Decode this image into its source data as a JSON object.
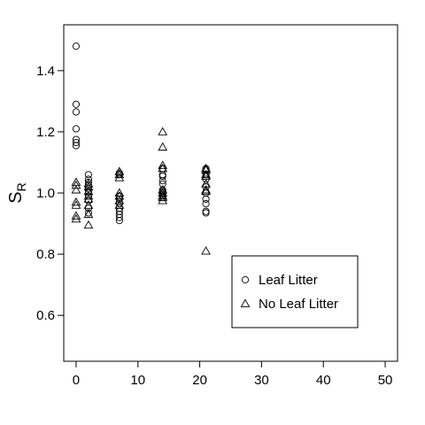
{
  "chart_data": {
    "type": "scatter",
    "title": "",
    "xlabel": "",
    "ylabel": "S",
    "ylabel_subscript": "R",
    "xlim": [
      -2,
      52
    ],
    "ylim": [
      0.45,
      1.55
    ],
    "xticks": [
      0,
      10,
      20,
      30,
      40,
      50
    ],
    "yticks": [
      0.6,
      0.8,
      1.0,
      1.2,
      1.4
    ],
    "xtick_labels": [
      "0",
      "10",
      "20",
      "30",
      "40",
      "50"
    ],
    "ytick_labels": [
      "0.6",
      "0.8",
      "1.0",
      "1.2",
      "1.4"
    ],
    "grid": false,
    "legend_position": "bottom-right",
    "series": [
      {
        "name": "Leaf Litter",
        "marker": "circle",
        "points": [
          [
            0,
            1.48
          ],
          [
            0,
            1.29
          ],
          [
            0,
            1.265
          ],
          [
            0,
            1.21
          ],
          [
            0,
            1.175
          ],
          [
            0,
            1.165
          ],
          [
            0,
            1.155
          ],
          [
            2,
            1.06
          ],
          [
            2,
            1.045
          ],
          [
            2,
            1.035
          ],
          [
            2,
            1.025
          ],
          [
            2,
            1.015
          ],
          [
            2,
            1.005
          ],
          [
            2,
            0.99
          ],
          [
            2,
            0.975
          ],
          [
            2,
            0.95
          ],
          [
            2,
            0.935
          ],
          [
            7,
            1.065
          ],
          [
            7,
            1.06
          ],
          [
            7,
            0.99
          ],
          [
            7,
            0.98
          ],
          [
            7,
            0.965
          ],
          [
            7,
            0.95
          ],
          [
            7,
            0.94
          ],
          [
            7,
            0.93
          ],
          [
            7,
            0.92
          ],
          [
            7,
            0.91
          ],
          [
            14,
            1.08
          ],
          [
            14,
            1.06
          ],
          [
            14,
            1.055
          ],
          [
            14,
            1.04
          ],
          [
            14,
            1.03
          ],
          [
            14,
            1.01
          ],
          [
            14,
            1.005
          ],
          [
            14,
            1.0
          ],
          [
            14,
            0.995
          ],
          [
            14,
            0.99
          ],
          [
            21,
            1.08
          ],
          [
            21,
            1.06
          ],
          [
            21,
            1.045
          ],
          [
            21,
            1.02
          ],
          [
            21,
            1.0
          ],
          [
            21,
            0.98
          ],
          [
            21,
            0.965
          ],
          [
            21,
            0.94
          ],
          [
            21,
            0.935
          ]
        ]
      },
      {
        "name": "No Leaf Litter",
        "marker": "triangle",
        "points": [
          [
            0,
            1.035
          ],
          [
            0,
            1.025
          ],
          [
            0,
            1.01
          ],
          [
            0,
            0.97
          ],
          [
            0,
            0.96
          ],
          [
            0,
            0.925
          ],
          [
            0,
            0.915
          ],
          [
            2,
            1.03
          ],
          [
            2,
            1.02
          ],
          [
            2,
            1.005
          ],
          [
            2,
            0.99
          ],
          [
            2,
            0.98
          ],
          [
            2,
            0.96
          ],
          [
            2,
            0.93
          ],
          [
            2,
            0.895
          ],
          [
            7,
            1.07
          ],
          [
            7,
            1.06
          ],
          [
            7,
            1.05
          ],
          [
            7,
            1.0
          ],
          [
            7,
            0.99
          ],
          [
            7,
            0.975
          ],
          [
            7,
            0.96
          ],
          [
            14,
            1.2
          ],
          [
            14,
            1.15
          ],
          [
            14,
            1.09
          ],
          [
            14,
            1.08
          ],
          [
            14,
            1.01
          ],
          [
            14,
            1.0
          ],
          [
            14,
            0.99
          ],
          [
            14,
            0.985
          ],
          [
            14,
            0.975
          ],
          [
            21,
            1.08
          ],
          [
            21,
            1.075
          ],
          [
            21,
            1.06
          ],
          [
            21,
            1.055
          ],
          [
            21,
            1.03
          ],
          [
            21,
            1.01
          ],
          [
            21,
            1.005
          ],
          [
            21,
            0.81
          ]
        ]
      }
    ]
  }
}
